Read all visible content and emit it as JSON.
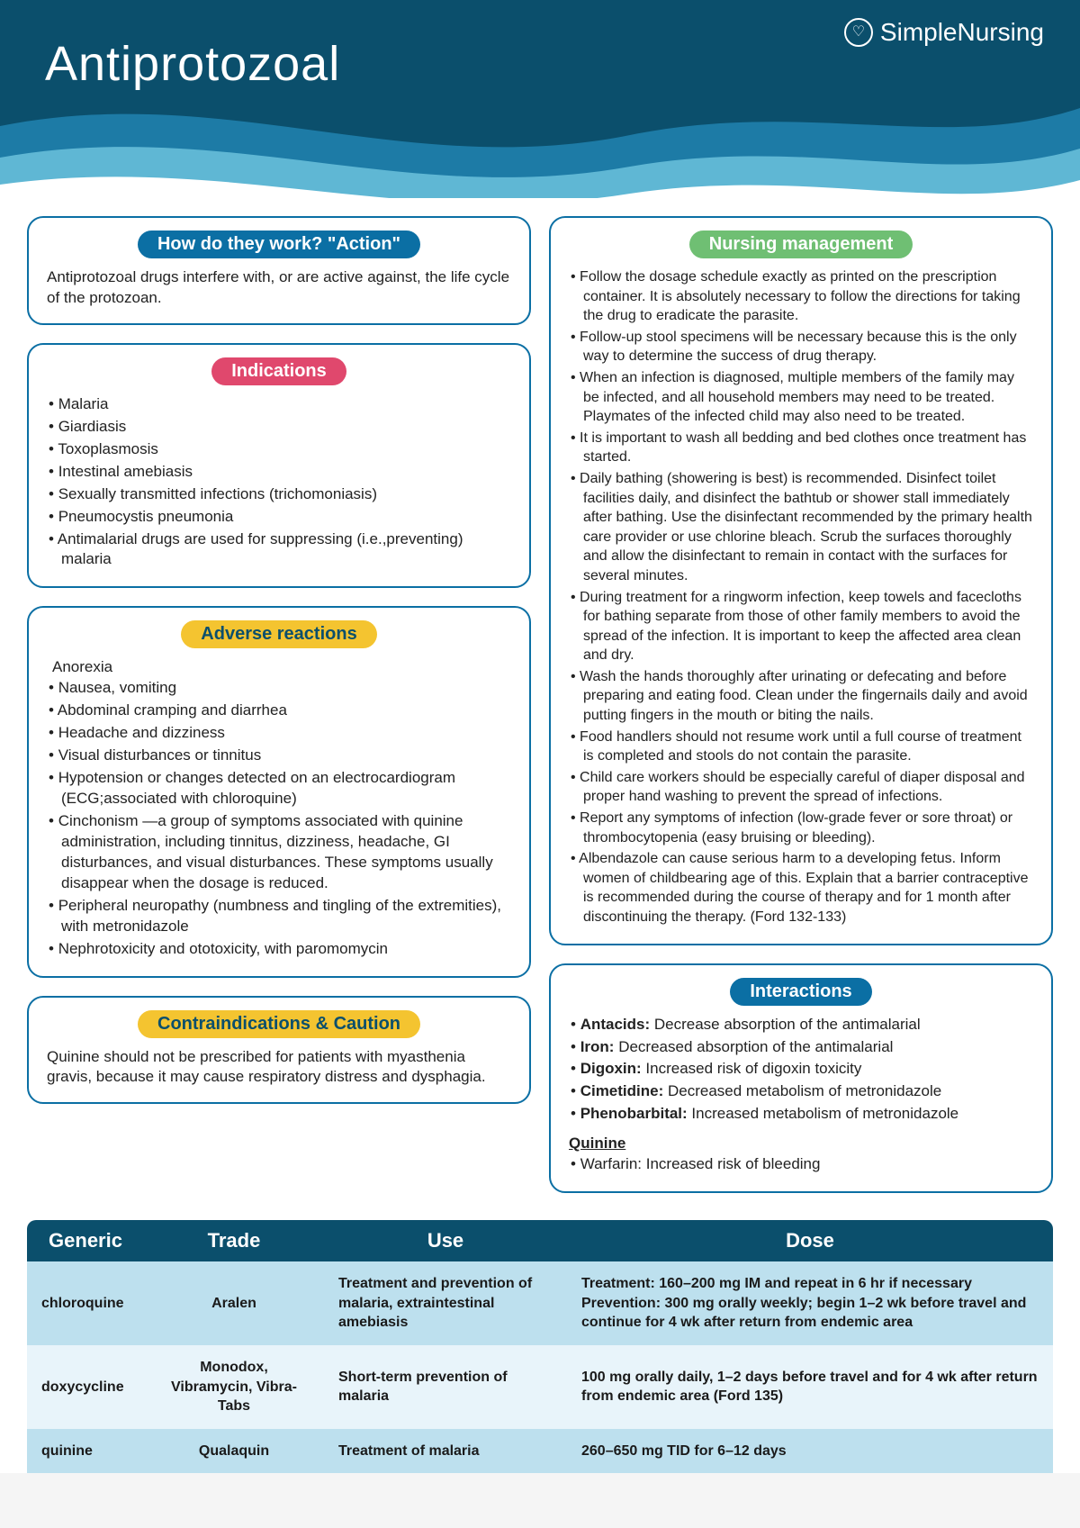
{
  "header": {
    "title": "Antiprotozoal",
    "brand": "SimpleNursing"
  },
  "colors": {
    "header_dark": "#0b4f6c",
    "header_mid": "#1d7ba6",
    "header_light": "#5fb7d4",
    "card_border": "#0b6fa4",
    "badge_blue": "#0b6fa4",
    "badge_pink": "#e0486d",
    "badge_yellow": "#f4c430",
    "badge_green": "#6fbf73",
    "table_header": "#0b4f6c",
    "row_even": "#bde0ee",
    "row_odd": "#e8f4fa"
  },
  "cards": {
    "action": {
      "title": "How do they work? \"Action\"",
      "badge_color": "blue",
      "text": "Antiprotozoal drugs interfere with, or are active against, the life cycle of the protozoan."
    },
    "indications": {
      "title": "Indications",
      "badge_color": "pink",
      "items": [
        "Malaria",
        "Giardiasis",
        "Toxoplasmosis",
        "Intestinal amebiasis",
        "Sexually transmitted infections (trichomoniasis)",
        "Pneumocystis pneumonia",
        "Antimalarial drugs are used for suppressing (i.e.,preventing) malaria"
      ]
    },
    "adverse": {
      "title": "Adverse reactions",
      "badge_color": "yellow",
      "lead": "Anorexia",
      "items": [
        "Nausea, vomiting",
        "Abdominal cramping and diarrhea",
        "Headache and dizziness",
        "Visual disturbances or tinnitus",
        "Hypotension or changes detected on an electrocardiogram (ECG;associated with chloroquine)",
        "Cinchonism —a group of symptoms associated with quinine administration, including tinnitus, dizziness, headache, GI disturbances, and visual disturbances. These symptoms usually disappear when the dosage is reduced.",
        "Peripheral neuropathy (numbness and tingling of the extremities), with metronidazole",
        "Nephrotoxicity and ototoxicity, with paromomycin"
      ]
    },
    "contra": {
      "title": "Contraindications & Caution",
      "badge_color": "yellow",
      "text": "Quinine should not be prescribed for patients with myasthenia gravis, because it may cause respiratory distress and dysphagia."
    },
    "nursing": {
      "title": "Nursing management",
      "badge_color": "green",
      "items": [
        "Follow the dosage schedule exactly as printed on the prescription container. It is absolutely necessary to follow the directions for taking the drug to eradicate the parasite.",
        "Follow-up stool specimens will be necessary because this is the only way to determine the success of drug therapy.",
        "When an infection is diagnosed, multiple members of the family may be infected, and all household members may need to be treated. Playmates of the infected child may also need to be treated.",
        "It is important to wash all bedding and bed clothes once treatment has started.",
        "Daily bathing (showering is best) is recommended. Disinfect toilet facilities daily, and disinfect the bathtub or shower stall immediately after bathing. Use the disinfectant recommended by the primary health care provider or use chlorine bleach. Scrub the surfaces thoroughly and allow the disinfectant to remain in contact with the surfaces for several minutes.",
        "During treatment for a ringworm infection, keep towels and facecloths for bathing separate from those of other family members to avoid the spread of the infection. It is important to keep the affected area clean and dry.",
        "Wash the hands thoroughly after urinating or defecating and before preparing and eating food. Clean under the fingernails daily and avoid putting fingers in the mouth or biting the nails.",
        "Food handlers should not resume work until a full course of treatment is completed and stools do not contain the parasite.",
        "Child care workers should be especially careful of diaper disposal and proper hand washing to prevent the spread of infections.",
        "Report any symptoms of infection (low-grade fever or sore throat) or thrombocytopenia (easy bruising or bleeding).",
        "Albendazole can cause serious harm to a developing fetus. Inform women of childbearing age of this. Explain that a barrier contraceptive is recommended during the course of therapy and for 1 month after discontinuing the therapy. (Ford 132-133)"
      ]
    },
    "interactions": {
      "title": "Interactions",
      "badge_color": "blue",
      "items": [
        {
          "b": "Antacids:",
          "t": " Decrease absorption of the antimalarial"
        },
        {
          "b": "Iron:",
          "t": " Decreased absorption of the antimalarial"
        },
        {
          "b": "Digoxin:",
          "t": " Increased risk of digoxin toxicity"
        },
        {
          "b": "Cimetidine:",
          "t": " Decreased metabolism of metronidazole"
        },
        {
          "b": "Phenobarbital:",
          "t": " Increased metabolism of metronidazole"
        }
      ],
      "subhead": "Quinine",
      "sub_items": [
        "Warfarin: Increased risk of bleeding"
      ]
    }
  },
  "table": {
    "headers": [
      "Generic",
      "Trade",
      "Use",
      "Dose"
    ],
    "rows": [
      {
        "generic": "chloroquine",
        "trade": "Aralen",
        "use": "Treatment and prevention of malaria, extraintestinal amebiasis",
        "dose": "Treatment: 160–200 mg IM and repeat in 6 hr if necessary Prevention: 300 mg orally weekly; begin 1–2 wk before travel and continue for 4 wk after return from endemic area"
      },
      {
        "generic": "doxycycline",
        "trade": "Monodox, Vibramycin, Vibra-Tabs",
        "use": "Short-term prevention of malaria",
        "dose": "100 mg orally daily, 1–2 days before travel and for 4 wk after return from endemic area (Ford 135)"
      },
      {
        "generic": "quinine",
        "trade": "Qualaquin",
        "use": "Treatment of malaria",
        "dose": "260–650 mg TID for 6–12 days"
      }
    ]
  }
}
